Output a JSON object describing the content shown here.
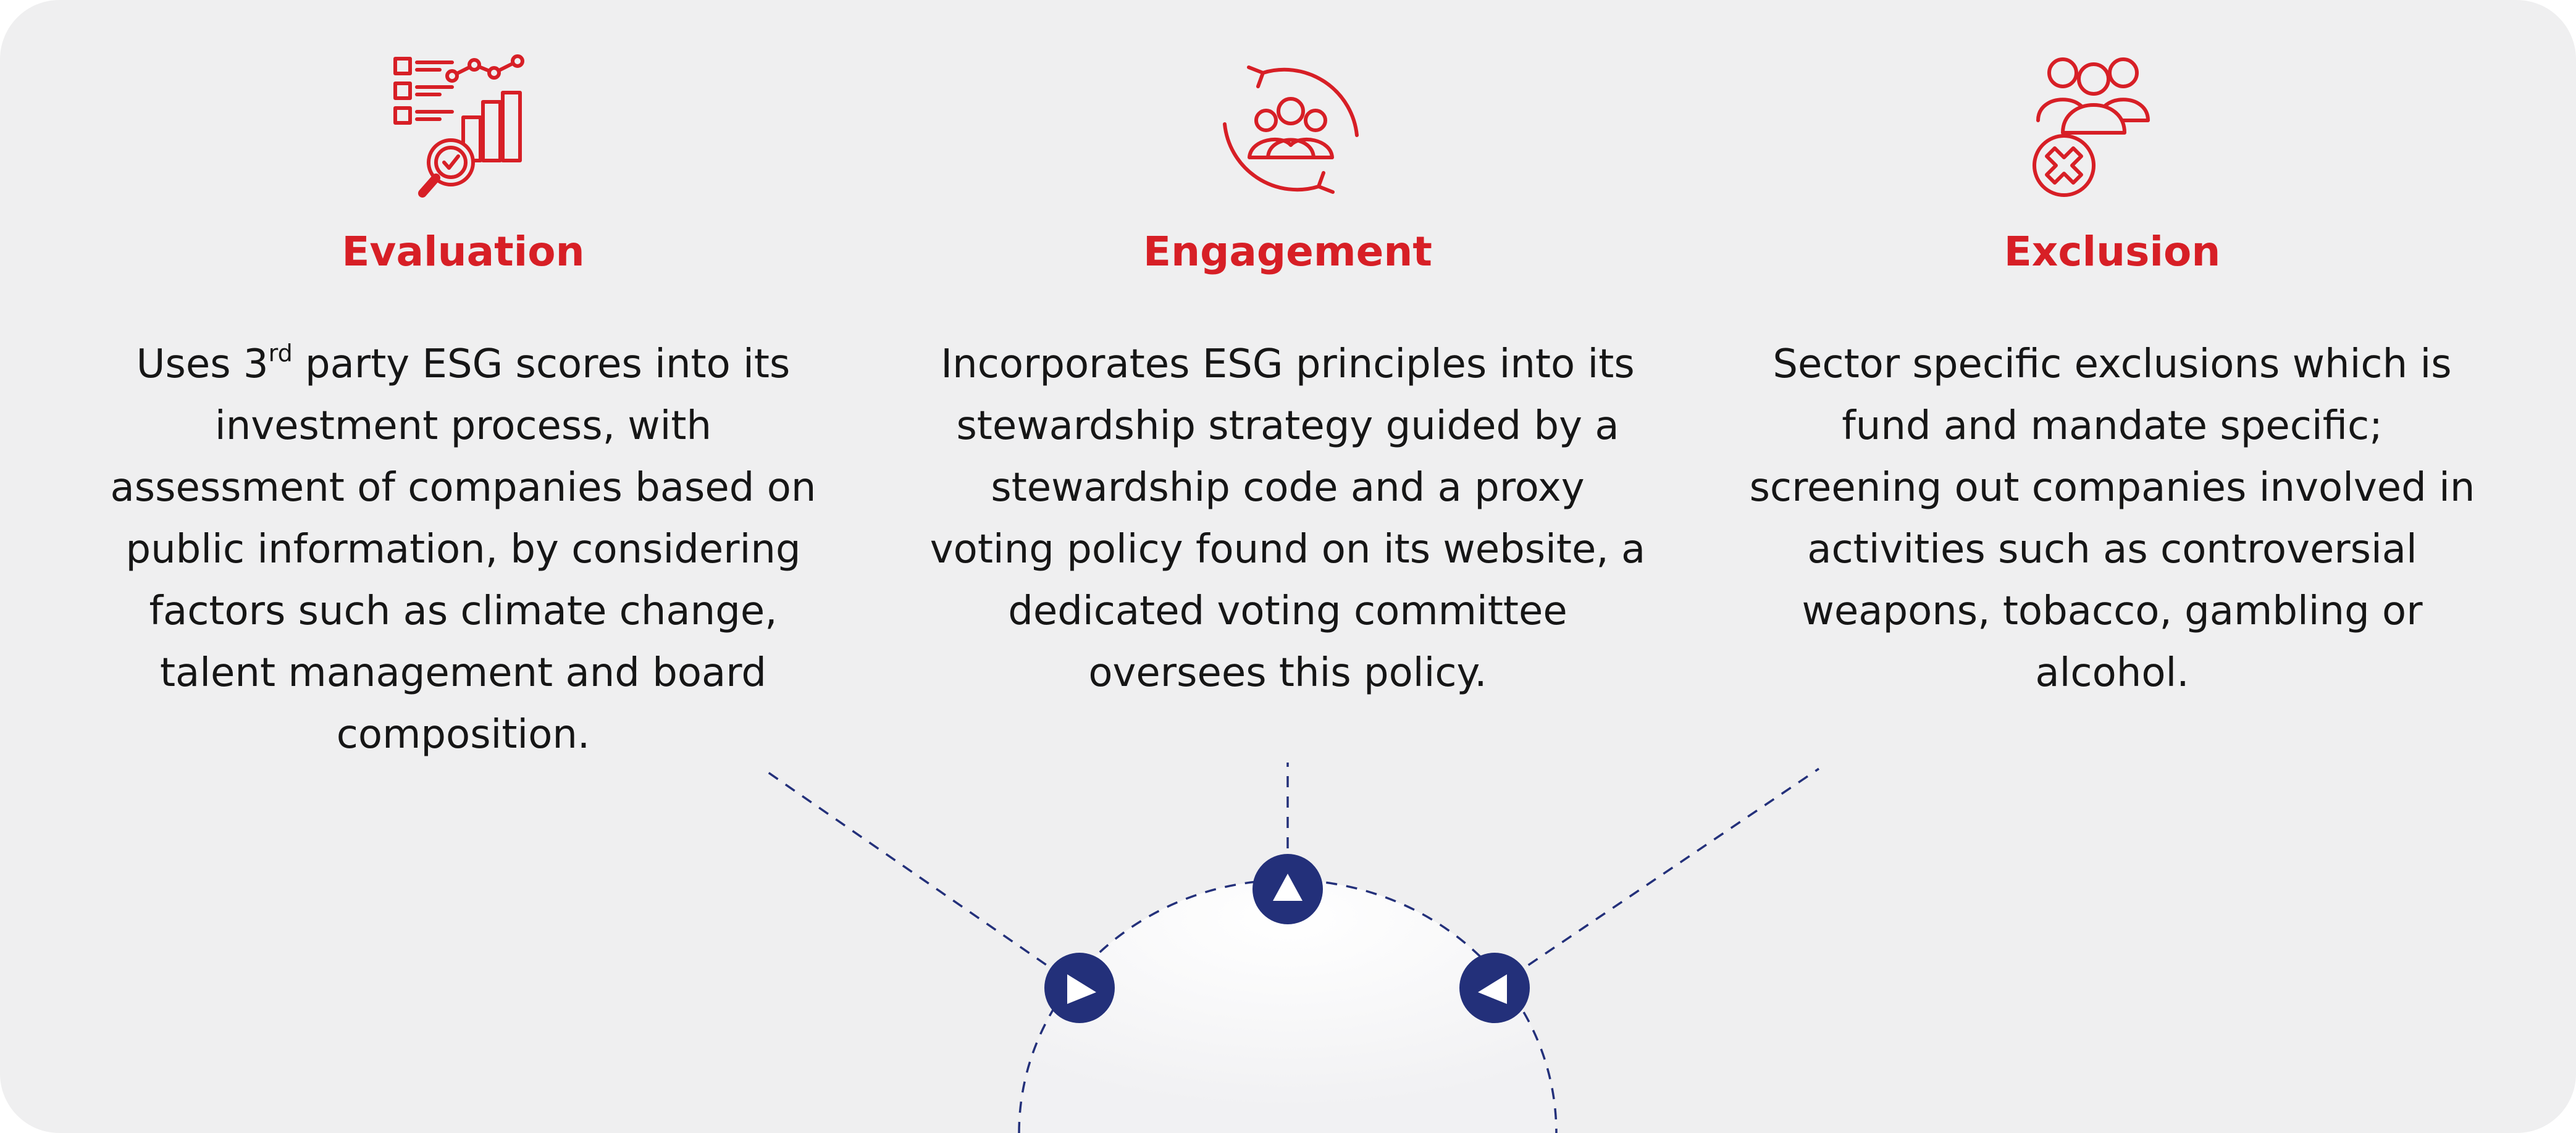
{
  "colors": {
    "background": "#efeff0",
    "accent_red": "#d71f26",
    "navy": "#23307a",
    "text": "#161616",
    "dome": "#fbfbfc"
  },
  "pillars": [
    {
      "icon": "evaluation-chart-magnifier-icon",
      "title": "Evaluation",
      "description": {
        "pre": "Uses 3",
        "sup": "rd",
        "post": " party ESG scores into its investment process, with assessment of companies based on public information, by considering factors such as climate change, talent management and board composition."
      }
    },
    {
      "icon": "engagement-cycle-people-icon",
      "title": "Engagement",
      "description": "Incorporates ESG principles into its stewardship strategy guided by a stewardship code and a proxy voting policy found on its website, a dedicated voting committee oversees this policy."
    },
    {
      "icon": "exclusion-people-x-icon",
      "title": "Exclusion",
      "description": "Sector specific exclusions which is fund and mandate specific; screening out companies involved in activities such as controversial weapons, tobacco, gambling or alcohol."
    }
  ]
}
